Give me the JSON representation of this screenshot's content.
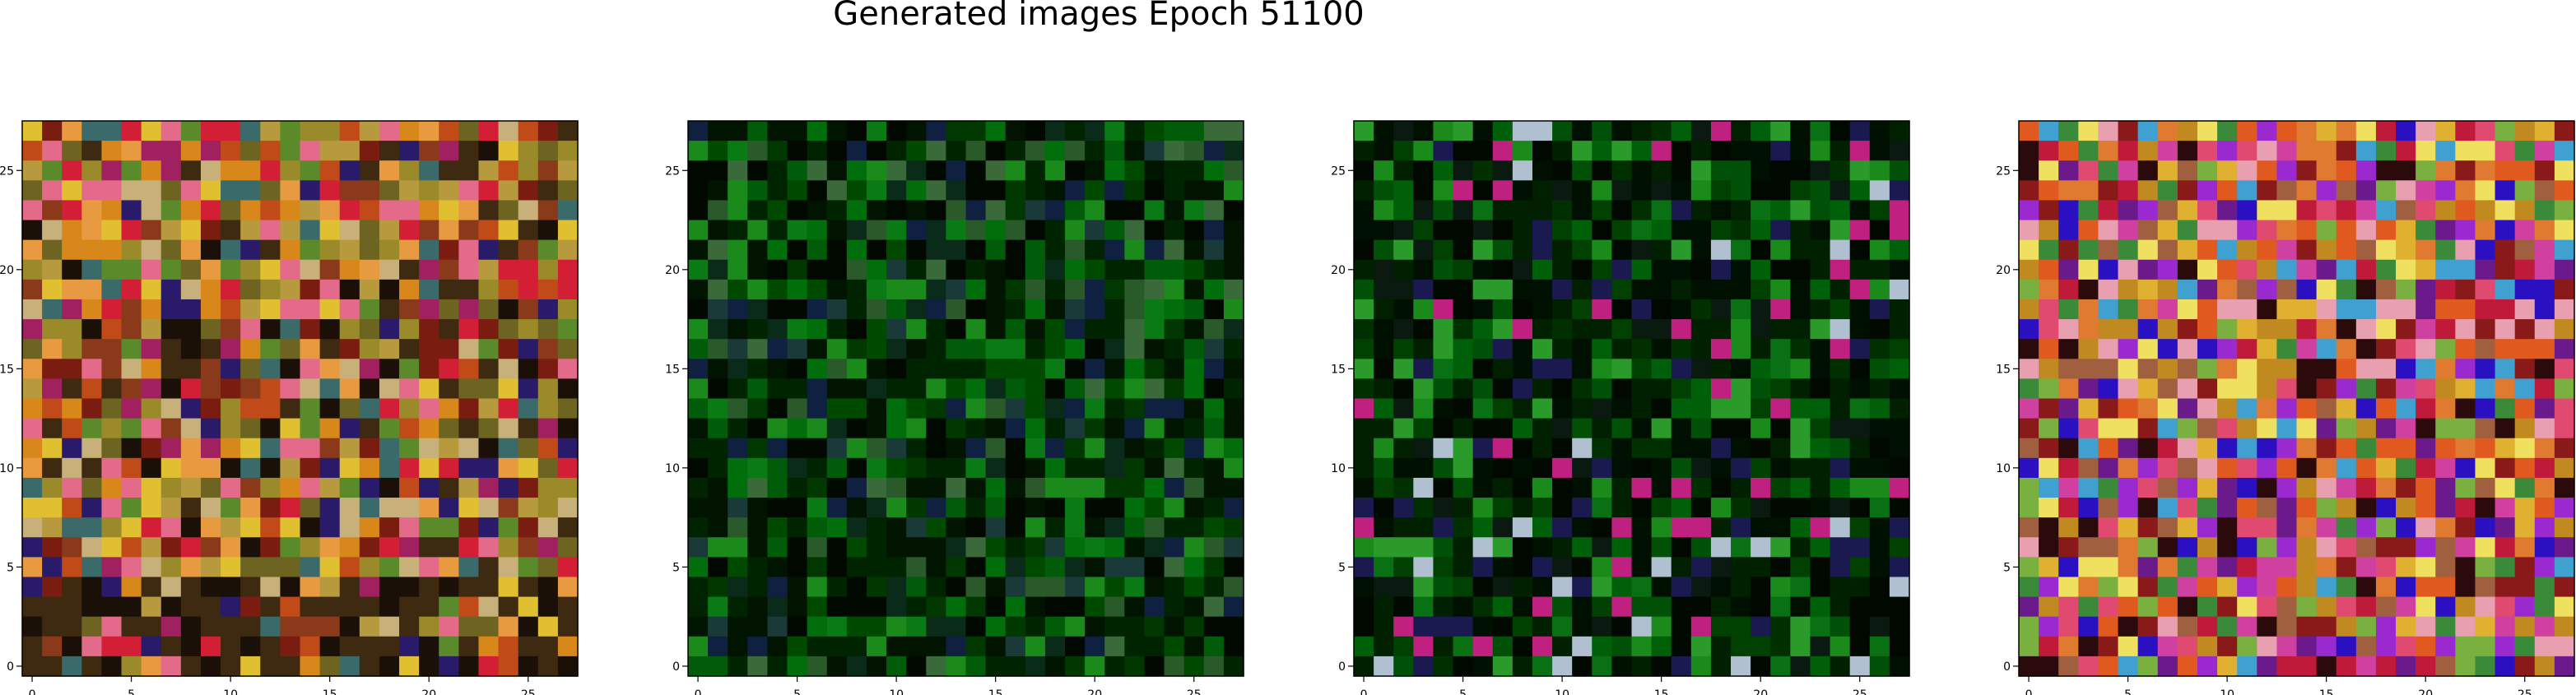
{
  "figure": {
    "title": "Generated images Epoch 51100"
  },
  "chart_data": [
    {
      "type": "heatmap",
      "grid_size": [
        28,
        28
      ],
      "xticks": [
        0,
        5,
        10,
        15,
        20,
        25
      ],
      "yticks": [
        0,
        5,
        10,
        15,
        20,
        25
      ],
      "xlim": [
        -0.5,
        27.5
      ],
      "ylim": [
        27.5,
        -0.5
      ],
      "palette_style": "multicolor-warm",
      "palette": [
        "#7a1c10",
        "#c04a18",
        "#d8881a",
        "#b79a3e",
        "#9a8a2a",
        "#6c6420",
        "#3e2a10",
        "#1a1008",
        "#d21f36",
        "#e46a8a",
        "#2a1a6a",
        "#5a8a2a",
        "#c8b07a",
        "#e0c030",
        "#a02060",
        "#3a6a6a",
        "#8a3a1a",
        "#e89a40"
      ]
    },
    {
      "type": "heatmap",
      "grid_size": [
        28,
        28
      ],
      "xticks": [
        0,
        5,
        10,
        15,
        20,
        25
      ],
      "yticks": [
        0,
        5,
        10,
        15,
        20,
        25
      ],
      "xlim": [
        -0.5,
        27.5
      ],
      "ylim": [
        27.5,
        -0.5
      ],
      "palette_style": "green-dark",
      "palette": [
        "#003800",
        "#004a00",
        "#005c08",
        "#006e0a",
        "#0a7a14",
        "#1a8a1a",
        "#002400",
        "#001400",
        "#000800",
        "#0a2a1a",
        "#1a3a3a",
        "#102040",
        "#2a5a2a",
        "#3a6a3a"
      ]
    },
    {
      "type": "heatmap",
      "grid_size": [
        28,
        28
      ],
      "xticks": [
        0,
        5,
        10,
        15,
        20,
        25
      ],
      "yticks": [
        0,
        5,
        10,
        15,
        20,
        25
      ],
      "xlim": [
        -0.5,
        27.5
      ],
      "ylim": [
        27.5,
        -0.5
      ],
      "palette_style": "green-dark-accents",
      "palette": [
        "#003000",
        "#004000",
        "#005008",
        "#00600a",
        "#0a7014",
        "#1a8a1a",
        "#002000",
        "#001000",
        "#000800",
        "#0a1a10",
        "#1a1a50",
        "#c02080",
        "#2a9a2a",
        "#b0c0d0"
      ]
    },
    {
      "type": "heatmap",
      "grid_size": [
        28,
        28
      ],
      "xticks": [
        0,
        5,
        10,
        15,
        20,
        25
      ],
      "yticks": [
        0,
        5,
        10,
        15,
        20,
        25
      ],
      "xlim": [
        -0.5,
        27.5
      ],
      "ylim": [
        27.5,
        -0.5
      ],
      "palette_style": "multicolor-vivid",
      "palette": [
        "#c01a3a",
        "#e04a70",
        "#e8a0b0",
        "#c08a20",
        "#e0b030",
        "#f0e060",
        "#6a1a8a",
        "#2a10c0",
        "#9a2ad0",
        "#d040a0",
        "#e07a30",
        "#3a8a3a",
        "#7ab040",
        "#2a0a0a",
        "#8a1a1a",
        "#40a0d0",
        "#a06040",
        "#e05a20"
      ]
    }
  ]
}
